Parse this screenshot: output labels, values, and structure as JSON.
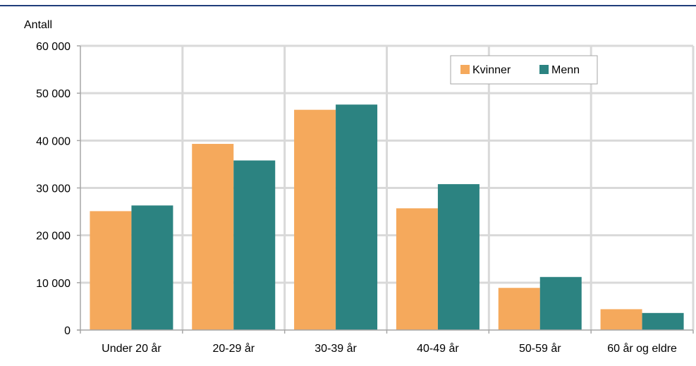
{
  "chart_data": {
    "type": "bar",
    "ylabel": "Antall",
    "categories": [
      "Under 20 år",
      "20-29 år",
      "30-39 år",
      "40-49 år",
      "50-59 år",
      "60 år og eldre"
    ],
    "series": [
      {
        "name": "Kvinner",
        "color": "#F5A95C",
        "values": [
          25100,
          39300,
          46500,
          25700,
          8900,
          4400
        ]
      },
      {
        "name": "Menn",
        "color": "#2C8381",
        "values": [
          26300,
          35800,
          47600,
          30800,
          11200,
          3600
        ]
      }
    ],
    "ylim": [
      0,
      60000
    ],
    "yticks": [
      0,
      10000,
      20000,
      30000,
      40000,
      50000,
      60000
    ],
    "ytick_labels": [
      "0",
      "10 000",
      "20 000",
      "30 000",
      "40 000",
      "50 000",
      "60 000"
    ],
    "grid": true,
    "legend_position": "top-right",
    "colors": {
      "header_rule": "#1F3D7A",
      "grid": "#D9D9D9",
      "axis": "#A6A6A6"
    }
  }
}
